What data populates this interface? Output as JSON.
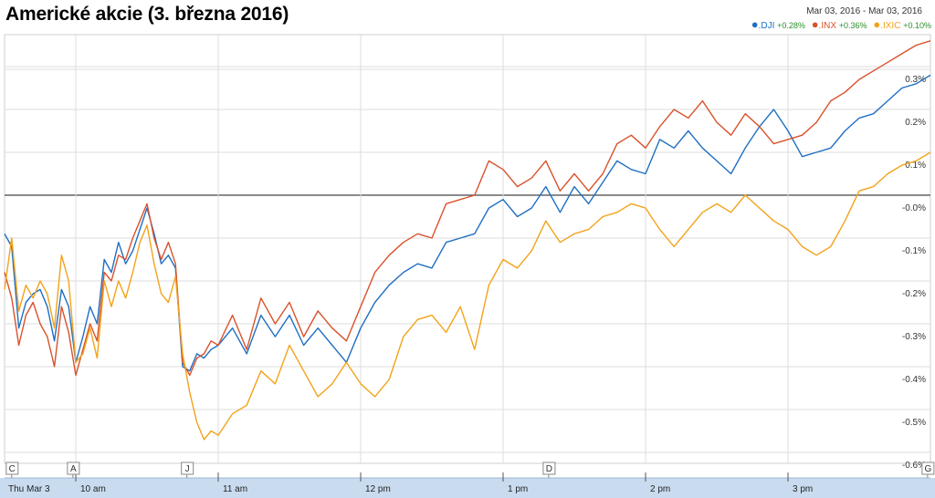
{
  "title": "Americké akcie (3. března 2016)",
  "date_range": {
    "start": "Mar 03, 2016",
    "sep": "-",
    "end": "Mar 03, 2016"
  },
  "colors": {
    "DJI": "#1f6fc3",
    "INX": "#d9522b",
    "IXIC": "#f2a31a",
    "grid": "#dcdcdc",
    "zero": "#444444",
    "axis_band": "#c9dcef"
  },
  "chart_data": {
    "type": "line",
    "title": "Americké akcie (3. března 2016)",
    "xlabel": "",
    "ylabel": "",
    "ylim": [
      -0.62,
      0.35
    ],
    "yticks": [
      "0.3%",
      "0.2%",
      "0.1%",
      "-0.0%",
      "-0.1%",
      "-0.2%",
      "-0.3%",
      "-0.4%",
      "-0.5%",
      "-0.6%"
    ],
    "ytick_values": [
      0.3,
      0.2,
      0.1,
      0.0,
      -0.1,
      -0.2,
      -0.3,
      -0.4,
      -0.5,
      -0.6
    ],
    "x_range_hours": [
      9.5,
      16.0
    ],
    "xticks": [
      {
        "label": "Thu Mar 3",
        "t": 9.5
      },
      {
        "label": "10 am",
        "t": 10.0
      },
      {
        "label": "11 am",
        "t": 11.0
      },
      {
        "label": "12 pm",
        "t": 12.0
      },
      {
        "label": "1 pm",
        "t": 13.0
      },
      {
        "label": "2 pm",
        "t": 14.0
      },
      {
        "label": "3 pm",
        "t": 15.0
      }
    ],
    "flags": [
      {
        "label": "C",
        "t": 9.55
      },
      {
        "label": "A",
        "t": 9.98
      },
      {
        "label": "J",
        "t": 10.78
      },
      {
        "label": "D",
        "t": 13.32
      },
      {
        "label": "G",
        "t": 15.98
      }
    ],
    "grid": true,
    "legend_position": "top-right",
    "series": [
      {
        "name": ".DJI",
        "change": "+0.28%",
        "color_key": "DJI",
        "points": [
          [
            9.5,
            -0.09
          ],
          [
            9.55,
            -0.12
          ],
          [
            9.6,
            -0.31
          ],
          [
            9.65,
            -0.25
          ],
          [
            9.7,
            -0.23
          ],
          [
            9.75,
            -0.22
          ],
          [
            9.8,
            -0.26
          ],
          [
            9.85,
            -0.34
          ],
          [
            9.9,
            -0.22
          ],
          [
            9.95,
            -0.26
          ],
          [
            10.0,
            -0.39
          ],
          [
            10.05,
            -0.33
          ],
          [
            10.1,
            -0.26
          ],
          [
            10.15,
            -0.3
          ],
          [
            10.2,
            -0.15
          ],
          [
            10.25,
            -0.18
          ],
          [
            10.3,
            -0.11
          ],
          [
            10.35,
            -0.16
          ],
          [
            10.4,
            -0.13
          ],
          [
            10.45,
            -0.08
          ],
          [
            10.5,
            -0.03
          ],
          [
            10.55,
            -0.09
          ],
          [
            10.6,
            -0.16
          ],
          [
            10.65,
            -0.14
          ],
          [
            10.7,
            -0.17
          ],
          [
            10.75,
            -0.4
          ],
          [
            10.8,
            -0.41
          ],
          [
            10.85,
            -0.37
          ],
          [
            10.9,
            -0.38
          ],
          [
            10.95,
            -0.36
          ],
          [
            11.0,
            -0.35
          ],
          [
            11.1,
            -0.31
          ],
          [
            11.2,
            -0.37
          ],
          [
            11.3,
            -0.28
          ],
          [
            11.4,
            -0.33
          ],
          [
            11.5,
            -0.28
          ],
          [
            11.6,
            -0.35
          ],
          [
            11.7,
            -0.31
          ],
          [
            11.8,
            -0.35
          ],
          [
            11.9,
            -0.39
          ],
          [
            12.0,
            -0.31
          ],
          [
            12.1,
            -0.25
          ],
          [
            12.2,
            -0.21
          ],
          [
            12.3,
            -0.18
          ],
          [
            12.4,
            -0.16
          ],
          [
            12.5,
            -0.17
          ],
          [
            12.6,
            -0.11
          ],
          [
            12.7,
            -0.1
          ],
          [
            12.8,
            -0.09
          ],
          [
            12.9,
            -0.03
          ],
          [
            13.0,
            -0.01
          ],
          [
            13.1,
            -0.05
          ],
          [
            13.2,
            -0.03
          ],
          [
            13.3,
            0.02
          ],
          [
            13.4,
            -0.04
          ],
          [
            13.5,
            0.02
          ],
          [
            13.6,
            -0.02
          ],
          [
            13.7,
            0.03
          ],
          [
            13.8,
            0.08
          ],
          [
            13.9,
            0.06
          ],
          [
            14.0,
            0.05
          ],
          [
            14.1,
            0.13
          ],
          [
            14.2,
            0.11
          ],
          [
            14.3,
            0.15
          ],
          [
            14.4,
            0.11
          ],
          [
            14.5,
            0.08
          ],
          [
            14.6,
            0.05
          ],
          [
            14.7,
            0.11
          ],
          [
            14.8,
            0.16
          ],
          [
            14.9,
            0.2
          ],
          [
            15.0,
            0.15
          ],
          [
            15.1,
            0.09
          ],
          [
            15.2,
            0.1
          ],
          [
            15.3,
            0.11
          ],
          [
            15.4,
            0.15
          ],
          [
            15.5,
            0.18
          ],
          [
            15.6,
            0.19
          ],
          [
            15.7,
            0.22
          ],
          [
            15.8,
            0.25
          ],
          [
            15.9,
            0.26
          ],
          [
            16.0,
            0.28
          ]
        ]
      },
      {
        "name": ".INX",
        "change": "+0.36%",
        "color_key": "INX",
        "points": [
          [
            9.5,
            -0.18
          ],
          [
            9.55,
            -0.24
          ],
          [
            9.6,
            -0.35
          ],
          [
            9.65,
            -0.28
          ],
          [
            9.7,
            -0.25
          ],
          [
            9.75,
            -0.3
          ],
          [
            9.8,
            -0.33
          ],
          [
            9.85,
            -0.4
          ],
          [
            9.9,
            -0.26
          ],
          [
            9.95,
            -0.32
          ],
          [
            10.0,
            -0.42
          ],
          [
            10.05,
            -0.36
          ],
          [
            10.1,
            -0.3
          ],
          [
            10.15,
            -0.34
          ],
          [
            10.2,
            -0.18
          ],
          [
            10.25,
            -0.2
          ],
          [
            10.3,
            -0.14
          ],
          [
            10.35,
            -0.15
          ],
          [
            10.4,
            -0.1
          ],
          [
            10.45,
            -0.06
          ],
          [
            10.5,
            -0.02
          ],
          [
            10.55,
            -0.1
          ],
          [
            10.6,
            -0.15
          ],
          [
            10.65,
            -0.11
          ],
          [
            10.7,
            -0.16
          ],
          [
            10.75,
            -0.39
          ],
          [
            10.8,
            -0.42
          ],
          [
            10.85,
            -0.38
          ],
          [
            10.9,
            -0.37
          ],
          [
            10.95,
            -0.34
          ],
          [
            11.0,
            -0.35
          ],
          [
            11.1,
            -0.28
          ],
          [
            11.2,
            -0.36
          ],
          [
            11.3,
            -0.24
          ],
          [
            11.4,
            -0.3
          ],
          [
            11.5,
            -0.25
          ],
          [
            11.6,
            -0.33
          ],
          [
            11.7,
            -0.27
          ],
          [
            11.8,
            -0.31
          ],
          [
            11.9,
            -0.34
          ],
          [
            12.0,
            -0.26
          ],
          [
            12.1,
            -0.18
          ],
          [
            12.2,
            -0.14
          ],
          [
            12.3,
            -0.11
          ],
          [
            12.4,
            -0.09
          ],
          [
            12.5,
            -0.1
          ],
          [
            12.6,
            -0.02
          ],
          [
            12.7,
            -0.01
          ],
          [
            12.8,
            0.0
          ],
          [
            12.9,
            0.08
          ],
          [
            13.0,
            0.06
          ],
          [
            13.1,
            0.02
          ],
          [
            13.2,
            0.04
          ],
          [
            13.3,
            0.08
          ],
          [
            13.4,
            0.01
          ],
          [
            13.5,
            0.05
          ],
          [
            13.6,
            0.01
          ],
          [
            13.7,
            0.05
          ],
          [
            13.8,
            0.12
          ],
          [
            13.9,
            0.14
          ],
          [
            14.0,
            0.11
          ],
          [
            14.1,
            0.16
          ],
          [
            14.2,
            0.2
          ],
          [
            14.3,
            0.18
          ],
          [
            14.4,
            0.22
          ],
          [
            14.5,
            0.17
          ],
          [
            14.6,
            0.14
          ],
          [
            14.7,
            0.19
          ],
          [
            14.8,
            0.16
          ],
          [
            14.9,
            0.12
          ],
          [
            15.0,
            0.13
          ],
          [
            15.1,
            0.14
          ],
          [
            15.2,
            0.17
          ],
          [
            15.3,
            0.22
          ],
          [
            15.4,
            0.24
          ],
          [
            15.5,
            0.27
          ],
          [
            15.6,
            0.29
          ],
          [
            15.7,
            0.31
          ],
          [
            15.8,
            0.33
          ],
          [
            15.9,
            0.35
          ],
          [
            16.0,
            0.36
          ]
        ]
      },
      {
        "name": ".IXIC",
        "change": "+0.10%",
        "color_key": "IXIC",
        "points": [
          [
            9.5,
            -0.22
          ],
          [
            9.55,
            -0.1
          ],
          [
            9.6,
            -0.27
          ],
          [
            9.65,
            -0.21
          ],
          [
            9.7,
            -0.24
          ],
          [
            9.75,
            -0.2
          ],
          [
            9.8,
            -0.23
          ],
          [
            9.85,
            -0.31
          ],
          [
            9.9,
            -0.14
          ],
          [
            9.95,
            -0.2
          ],
          [
            10.0,
            -0.39
          ],
          [
            10.05,
            -0.37
          ],
          [
            10.1,
            -0.31
          ],
          [
            10.15,
            -0.38
          ],
          [
            10.2,
            -0.2
          ],
          [
            10.25,
            -0.26
          ],
          [
            10.3,
            -0.2
          ],
          [
            10.35,
            -0.24
          ],
          [
            10.4,
            -0.18
          ],
          [
            10.45,
            -0.11
          ],
          [
            10.5,
            -0.07
          ],
          [
            10.55,
            -0.16
          ],
          [
            10.6,
            -0.23
          ],
          [
            10.65,
            -0.25
          ],
          [
            10.7,
            -0.19
          ],
          [
            10.75,
            -0.37
          ],
          [
            10.8,
            -0.46
          ],
          [
            10.85,
            -0.53
          ],
          [
            10.9,
            -0.57
          ],
          [
            10.95,
            -0.55
          ],
          [
            11.0,
            -0.56
          ],
          [
            11.1,
            -0.51
          ],
          [
            11.2,
            -0.49
          ],
          [
            11.3,
            -0.41
          ],
          [
            11.4,
            -0.44
          ],
          [
            11.5,
            -0.35
          ],
          [
            11.6,
            -0.41
          ],
          [
            11.7,
            -0.47
          ],
          [
            11.8,
            -0.44
          ],
          [
            11.9,
            -0.39
          ],
          [
            12.0,
            -0.44
          ],
          [
            12.1,
            -0.47
          ],
          [
            12.2,
            -0.43
          ],
          [
            12.3,
            -0.33
          ],
          [
            12.4,
            -0.29
          ],
          [
            12.5,
            -0.28
          ],
          [
            12.6,
            -0.32
          ],
          [
            12.7,
            -0.26
          ],
          [
            12.8,
            -0.36
          ],
          [
            12.9,
            -0.21
          ],
          [
            13.0,
            -0.15
          ],
          [
            13.1,
            -0.17
          ],
          [
            13.2,
            -0.13
          ],
          [
            13.3,
            -0.06
          ],
          [
            13.4,
            -0.11
          ],
          [
            13.5,
            -0.09
          ],
          [
            13.6,
            -0.08
          ],
          [
            13.7,
            -0.05
          ],
          [
            13.8,
            -0.04
          ],
          [
            13.9,
            -0.02
          ],
          [
            14.0,
            -0.03
          ],
          [
            14.1,
            -0.08
          ],
          [
            14.2,
            -0.12
          ],
          [
            14.3,
            -0.08
          ],
          [
            14.4,
            -0.04
          ],
          [
            14.5,
            -0.02
          ],
          [
            14.6,
            -0.04
          ],
          [
            14.7,
            0.0
          ],
          [
            14.8,
            -0.03
          ],
          [
            14.9,
            -0.06
          ],
          [
            15.0,
            -0.08
          ],
          [
            15.1,
            -0.12
          ],
          [
            15.2,
            -0.14
          ],
          [
            15.3,
            -0.12
          ],
          [
            15.4,
            -0.06
          ],
          [
            15.5,
            0.01
          ],
          [
            15.6,
            0.02
          ],
          [
            15.7,
            0.05
          ],
          [
            15.8,
            0.07
          ],
          [
            15.9,
            0.08
          ],
          [
            16.0,
            0.1
          ]
        ]
      }
    ]
  }
}
